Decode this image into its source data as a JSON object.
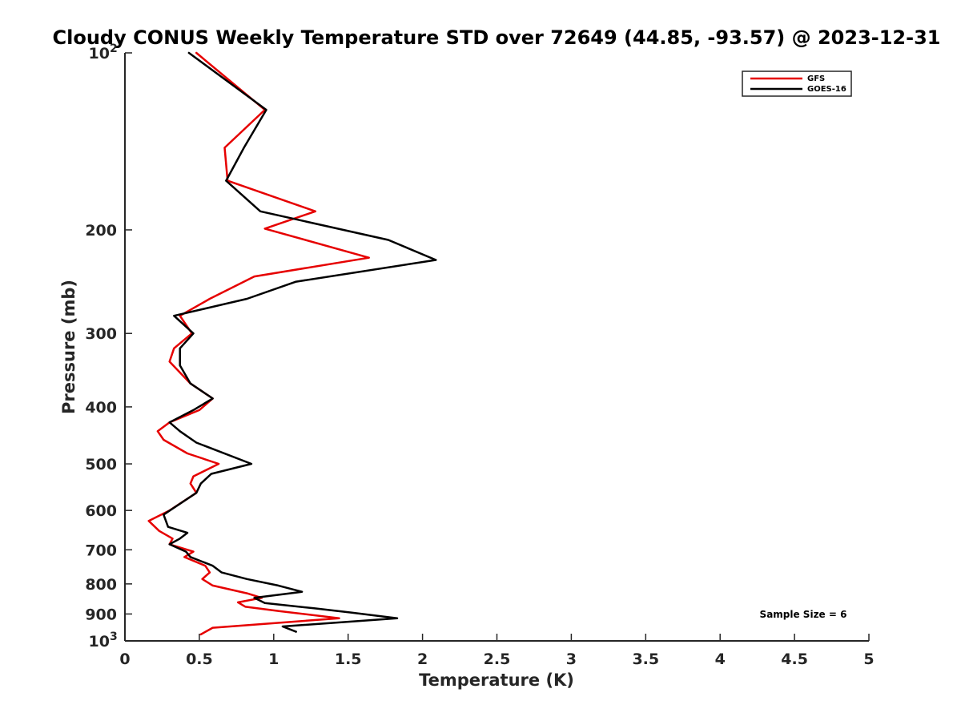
{
  "chart_data": {
    "type": "line",
    "title": "Cloudy CONUS Weekly Temperature STD over 72649 (44.85, -93.57) @ 2023-12-31",
    "xlabel": "Temperature (K)",
    "ylabel": "Pressure (mb)",
    "xlim": [
      0,
      5
    ],
    "ylim": [
      100,
      1000
    ],
    "y_scale": "log",
    "y_reversed": true,
    "x_ticks": [
      "0",
      "0.5",
      "1",
      "1.5",
      "2",
      "2.5",
      "3",
      "3.5",
      "4",
      "4.5",
      "5"
    ],
    "y_ticks": [
      {
        "value": 100,
        "base": "10",
        "exp": "2"
      },
      {
        "value": 200,
        "label": "200"
      },
      {
        "value": 300,
        "label": "300"
      },
      {
        "value": 400,
        "label": "400"
      },
      {
        "value": 500,
        "label": "500"
      },
      {
        "value": 600,
        "label": "600"
      },
      {
        "value": 700,
        "label": "700"
      },
      {
        "value": 800,
        "label": "800"
      },
      {
        "value": 900,
        "label": "900"
      },
      {
        "value": 1000,
        "base": "10",
        "exp": "3"
      }
    ],
    "grid": false,
    "legend_position": "top-right",
    "annotation": "Sample Size = 6",
    "series": [
      {
        "name": "GFS",
        "color": "#e60000",
        "points": [
          [
            0.48,
            100
          ],
          [
            0.94,
            125
          ],
          [
            0.67,
            145
          ],
          [
            0.69,
            165
          ],
          [
            1.28,
            186
          ],
          [
            0.94,
            199
          ],
          [
            1.64,
            223
          ],
          [
            0.87,
            240
          ],
          [
            0.57,
            262
          ],
          [
            0.37,
            280
          ],
          [
            0.45,
            300
          ],
          [
            0.33,
            318
          ],
          [
            0.3,
            335
          ],
          [
            0.44,
            365
          ],
          [
            0.59,
            387
          ],
          [
            0.5,
            405
          ],
          [
            0.3,
            425
          ],
          [
            0.22,
            440
          ],
          [
            0.26,
            455
          ],
          [
            0.42,
            480
          ],
          [
            0.63,
            500
          ],
          [
            0.46,
            525
          ],
          [
            0.44,
            540
          ],
          [
            0.48,
            560
          ],
          [
            0.3,
            600
          ],
          [
            0.16,
            625
          ],
          [
            0.23,
            650
          ],
          [
            0.32,
            670
          ],
          [
            0.3,
            685
          ],
          [
            0.46,
            705
          ],
          [
            0.4,
            720
          ],
          [
            0.54,
            745
          ],
          [
            0.57,
            765
          ],
          [
            0.52,
            785
          ],
          [
            0.59,
            805
          ],
          [
            0.82,
            830
          ],
          [
            0.92,
            845
          ],
          [
            0.76,
            860
          ],
          [
            0.81,
            875
          ],
          [
            1.04,
            890
          ],
          [
            1.44,
            915
          ],
          [
            0.59,
            950
          ],
          [
            0.51,
            975
          ]
        ]
      },
      {
        "name": "GOES-16",
        "color": "#000000",
        "points": [
          [
            0.43,
            100
          ],
          [
            0.95,
            125
          ],
          [
            0.8,
            145
          ],
          [
            0.68,
            165
          ],
          [
            0.91,
            186
          ],
          [
            1.77,
            208
          ],
          [
            2.09,
            225
          ],
          [
            1.15,
            245
          ],
          [
            0.82,
            262
          ],
          [
            0.33,
            280
          ],
          [
            0.46,
            300
          ],
          [
            0.37,
            318
          ],
          [
            0.37,
            340
          ],
          [
            0.44,
            365
          ],
          [
            0.59,
            387
          ],
          [
            0.46,
            405
          ],
          [
            0.3,
            425
          ],
          [
            0.37,
            440
          ],
          [
            0.48,
            460
          ],
          [
            0.85,
            500
          ],
          [
            0.58,
            520
          ],
          [
            0.51,
            540
          ],
          [
            0.48,
            560
          ],
          [
            0.26,
            610
          ],
          [
            0.29,
            640
          ],
          [
            0.42,
            655
          ],
          [
            0.37,
            670
          ],
          [
            0.3,
            685
          ],
          [
            0.41,
            705
          ],
          [
            0.44,
            720
          ],
          [
            0.59,
            745
          ],
          [
            0.65,
            765
          ],
          [
            0.82,
            785
          ],
          [
            1.03,
            805
          ],
          [
            1.19,
            825
          ],
          [
            0.87,
            845
          ],
          [
            0.94,
            862
          ],
          [
            1.27,
            880
          ],
          [
            1.52,
            895
          ],
          [
            1.83,
            915
          ],
          [
            1.06,
            945
          ],
          [
            1.15,
            965
          ]
        ]
      }
    ]
  }
}
